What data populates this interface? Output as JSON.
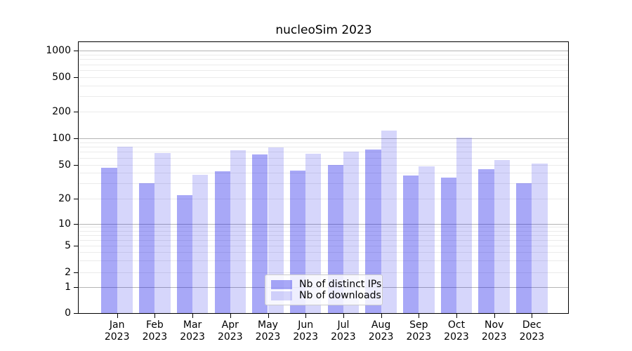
{
  "chart_data": {
    "type": "bar",
    "title": "nucleoSim 2023",
    "categories": [
      "Jan 2023",
      "Feb 2023",
      "Mar 2023",
      "Apr 2023",
      "May 2023",
      "Jun 2023",
      "Jul 2023",
      "Aug 2023",
      "Sep 2023",
      "Oct 2023",
      "Nov 2023",
      "Dec 2023"
    ],
    "series": [
      {
        "name": "Nb of distinct IPs",
        "color": "rgba(25,25,235,0.38)",
        "values": [
          46,
          30,
          22,
          42,
          65,
          43,
          50,
          74,
          37,
          35,
          44,
          30
        ]
      },
      {
        "name": "Nb of downloads",
        "color": "rgba(25,25,235,0.18)",
        "values": [
          80,
          68,
          38,
          73,
          79,
          66,
          71,
          122,
          48,
          101,
          57,
          52
        ]
      }
    ],
    "y_scale": "asinh",
    "y_ticks": [
      0,
      1,
      2,
      5,
      10,
      20,
      50,
      100,
      200,
      500,
      1000
    ],
    "y_grid_major": [
      1,
      10,
      100,
      1000
    ],
    "y_grid_minor": [
      2,
      3,
      4,
      5,
      6,
      7,
      8,
      9,
      20,
      30,
      40,
      50,
      60,
      70,
      80,
      90,
      200,
      300,
      400,
      500,
      600,
      700,
      800,
      900
    ],
    "ylim": [
      0,
      1250
    ],
    "grid": true,
    "legend_position": "lower center",
    "colors": {
      "major_grid": "#b4b4b4",
      "minor_grid": "#ebebeb",
      "spine": "#000000",
      "text": "#000000",
      "background": "#ffffff"
    }
  }
}
